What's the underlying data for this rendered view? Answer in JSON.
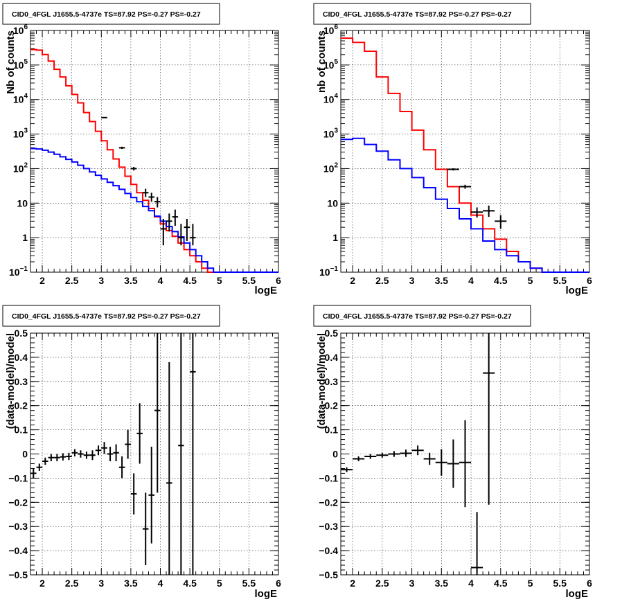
{
  "chart_data": [
    {
      "type": "step",
      "title": "CID0_4FGL J1655.5-4737e TS=87.92 PS=-0.27 PS=-0.27",
      "xlabel": "logE",
      "ylabel": "Nb of counts",
      "log_y": true,
      "xlim": [
        1.8,
        6.0
      ],
      "ylim": [
        0.1,
        1000000
      ],
      "x_ticks": [
        "2",
        "2.5",
        "3",
        "3.5",
        "4",
        "4.5",
        "5",
        "5.5",
        "6"
      ],
      "y_ticks": [
        {
          "base": "10",
          "exp": "−1"
        },
        {
          "base": "1",
          "exp": ""
        },
        {
          "base": "10",
          "exp": ""
        },
        {
          "base": "10",
          "exp": "2"
        },
        {
          "base": "10",
          "exp": "3"
        },
        {
          "base": "10",
          "exp": "4"
        },
        {
          "base": "10",
          "exp": "5"
        },
        {
          "base": "10",
          "exp": "6"
        }
      ],
      "grid": true,
      "bin_edges": [
        1.8,
        1.9,
        2.0,
        2.1,
        2.2,
        2.3,
        2.4,
        2.5,
        2.6,
        2.7,
        2.8,
        2.9,
        3.0,
        3.1,
        3.2,
        3.3,
        3.4,
        3.5,
        3.6,
        3.7,
        3.8,
        3.9,
        4.0,
        4.1,
        4.2,
        4.3,
        4.4,
        4.5,
        4.6,
        4.7,
        4.8,
        4.9,
        5.0,
        5.1,
        5.2,
        5.3,
        5.4,
        5.5,
        5.6,
        5.7,
        5.8,
        5.9,
        6.0
      ],
      "series": [
        {
          "color": "#ff0000",
          "values": [
            280000,
            270000,
            200000,
            130000,
            75000,
            45000,
            25000,
            14000,
            8000,
            4200,
            2300,
            1200,
            640,
            350,
            190,
            110,
            60,
            35,
            20,
            12,
            7,
            4,
            2.5,
            1.6,
            1.1,
            0.7,
            0.45,
            0.3,
            0.2,
            0.13,
            0.1,
            0.1,
            0.1,
            0.1,
            0.1,
            0.1,
            0.1,
            0.1,
            0.1,
            0.1,
            0.1,
            0.1
          ]
        },
        {
          "color": "#0000ff",
          "values": [
            380,
            370,
            340,
            300,
            260,
            220,
            185,
            155,
            125,
            100,
            80,
            64,
            50,
            40,
            32,
            25,
            19,
            14.5,
            11,
            8,
            6,
            4.2,
            3,
            2.1,
            1.5,
            1.05,
            0.7,
            0.45,
            0.3,
            0.2,
            0.13,
            0.1,
            0.1,
            0.1,
            0.1,
            0.1,
            0.1,
            0.1,
            0.1,
            0.1,
            0.1,
            0.1
          ]
        }
      ],
      "points": [
        {
          "x": 3.05,
          "xerr": 0.05,
          "y": 3000,
          "ylo": 2900,
          "yhi": 3100
        },
        {
          "x": 3.35,
          "xerr": 0.05,
          "y": 400,
          "ylo": 370,
          "yhi": 430
        },
        {
          "x": 3.55,
          "xerr": 0.05,
          "y": 100,
          "ylo": 88,
          "yhi": 112
        },
        {
          "x": 3.75,
          "xerr": 0.05,
          "y": 20,
          "ylo": 15,
          "yhi": 26
        },
        {
          "x": 3.85,
          "xerr": 0.05,
          "y": 15,
          "ylo": 11,
          "yhi": 20
        },
        {
          "x": 3.95,
          "xerr": 0.05,
          "y": 11,
          "ylo": 7.5,
          "yhi": 15
        },
        {
          "x": 4.05,
          "xerr": 0.05,
          "y": 1.8,
          "ylo": 0.6,
          "yhi": 3.5
        },
        {
          "x": 4.15,
          "xerr": 0.05,
          "y": 3,
          "ylo": 1.5,
          "yhi": 5
        },
        {
          "x": 4.25,
          "xerr": 0.05,
          "y": 4,
          "ylo": 2.2,
          "yhi": 6.5
        },
        {
          "x": 4.35,
          "xerr": 0.05,
          "y": 1,
          "ylo": 0.6,
          "yhi": 2.5
        },
        {
          "x": 4.45,
          "xerr": 0.05,
          "y": 2,
          "ylo": 0.8,
          "yhi": 3.5
        },
        {
          "x": 4.55,
          "xerr": 0.05,
          "y": 1,
          "ylo": 0.6,
          "yhi": 2.5
        }
      ]
    },
    {
      "type": "step",
      "title": "CID0_4FGL J1655.5-4737e TS=87.92 PS=-0.27 PS=-0.27",
      "xlabel": "logE",
      "ylabel": "nb of counts",
      "log_y": true,
      "xlim": [
        1.8,
        6.0
      ],
      "ylim": [
        0.1,
        1000000
      ],
      "x_ticks": [
        "2",
        "2.5",
        "3",
        "3.5",
        "4",
        "4.5",
        "5",
        "5.5",
        "6"
      ],
      "y_ticks": [
        {
          "base": "10",
          "exp": "−1"
        },
        {
          "base": "1",
          "exp": ""
        },
        {
          "base": "10",
          "exp": ""
        },
        {
          "base": "10",
          "exp": "2"
        },
        {
          "base": "10",
          "exp": "3"
        },
        {
          "base": "10",
          "exp": "4"
        },
        {
          "base": "10",
          "exp": "5"
        },
        {
          "base": "10",
          "exp": "6"
        }
      ],
      "grid": true,
      "bin_edges": [
        1.8,
        2.0,
        2.2,
        2.4,
        2.6,
        2.8,
        3.0,
        3.2,
        3.4,
        3.6,
        3.8,
        4.0,
        4.2,
        4.4,
        4.6,
        4.8,
        5.0,
        5.2,
        5.4,
        5.6,
        5.8,
        6.0
      ],
      "series": [
        {
          "color": "#ff0000",
          "values": [
            600000,
            450000,
            250000,
            45000,
            15000,
            4500,
            1300,
            350,
            95,
            30,
            10,
            4.5,
            1.8,
            0.9,
            0.4,
            0.2,
            0.13,
            0.1,
            0.1,
            0.1,
            0.1
          ]
        },
        {
          "color": "#0000ff",
          "values": [
            700,
            750,
            500,
            320,
            180,
            100,
            55,
            28,
            13,
            7,
            3.5,
            1.8,
            0.8,
            0.45,
            0.3,
            0.2,
            0.13,
            0.1,
            0.1,
            0.1,
            0.1
          ]
        }
      ],
      "points": [
        {
          "x": 3.7,
          "xerr": 0.1,
          "y": 95,
          "ylo": 88,
          "yhi": 102
        },
        {
          "x": 3.9,
          "xerr": 0.1,
          "y": 30,
          "ylo": 26,
          "yhi": 34
        },
        {
          "x": 4.1,
          "xerr": 0.1,
          "y": 5.5,
          "ylo": 3.8,
          "yhi": 7.5
        },
        {
          "x": 4.3,
          "xerr": 0.1,
          "y": 6,
          "ylo": 4,
          "yhi": 8.5
        },
        {
          "x": 4.5,
          "xerr": 0.1,
          "y": 3,
          "ylo": 1.8,
          "yhi": 4.5
        }
      ]
    },
    {
      "type": "scatter",
      "title": "CID0_4FGL J1655.5-4737e TS=87.92 PS=-0.27 PS=-0.27",
      "xlabel": "logE",
      "ylabel": "(data-model)/model",
      "log_y": false,
      "xlim": [
        1.8,
        6.0
      ],
      "ylim": [
        -0.5,
        0.5
      ],
      "x_ticks": [
        "2",
        "2.5",
        "3",
        "3.5",
        "4",
        "4.5",
        "5",
        "5.5",
        "6"
      ],
      "y_ticks": [
        "−0.5",
        "−0.4",
        "−0.3",
        "−0.2",
        "−0.1",
        "0",
        "0.1",
        "0.2",
        "0.3",
        "0.4",
        "0.5"
      ],
      "grid": true,
      "points": [
        {
          "x": 1.85,
          "xerr": 0.05,
          "y": -0.08,
          "ylo": -0.1,
          "yhi": -0.06
        },
        {
          "x": 1.95,
          "xerr": 0.05,
          "y": -0.055,
          "ylo": -0.07,
          "yhi": -0.04
        },
        {
          "x": 2.05,
          "xerr": 0.05,
          "y": -0.03,
          "ylo": -0.045,
          "yhi": -0.015
        },
        {
          "x": 2.15,
          "xerr": 0.05,
          "y": -0.015,
          "ylo": -0.03,
          "yhi": 0.0
        },
        {
          "x": 2.25,
          "xerr": 0.05,
          "y": -0.015,
          "ylo": -0.03,
          "yhi": 0.0
        },
        {
          "x": 2.35,
          "xerr": 0.05,
          "y": -0.012,
          "ylo": -0.027,
          "yhi": 0.003
        },
        {
          "x": 2.45,
          "xerr": 0.05,
          "y": -0.01,
          "ylo": -0.025,
          "yhi": 0.005
        },
        {
          "x": 2.55,
          "xerr": 0.05,
          "y": 0.005,
          "ylo": -0.01,
          "yhi": 0.02
        },
        {
          "x": 2.65,
          "xerr": 0.05,
          "y": 0.0,
          "ylo": -0.015,
          "yhi": 0.015
        },
        {
          "x": 2.75,
          "xerr": 0.05,
          "y": -0.005,
          "ylo": -0.02,
          "yhi": 0.01
        },
        {
          "x": 2.85,
          "xerr": 0.05,
          "y": -0.005,
          "ylo": -0.025,
          "yhi": 0.015
        },
        {
          "x": 2.95,
          "xerr": 0.05,
          "y": 0.015,
          "ylo": -0.005,
          "yhi": 0.035
        },
        {
          "x": 3.05,
          "xerr": 0.05,
          "y": 0.025,
          "ylo": 0.0,
          "yhi": 0.05
        },
        {
          "x": 3.15,
          "xerr": 0.05,
          "y": 0.0,
          "ylo": -0.03,
          "yhi": 0.03
        },
        {
          "x": 3.25,
          "xerr": 0.05,
          "y": 0.005,
          "ylo": -0.03,
          "yhi": 0.04
        },
        {
          "x": 3.35,
          "xerr": 0.05,
          "y": -0.055,
          "ylo": -0.1,
          "yhi": -0.01
        },
        {
          "x": 3.45,
          "xerr": 0.05,
          "y": 0.04,
          "ylo": -0.02,
          "yhi": 0.1
        },
        {
          "x": 3.55,
          "xerr": 0.05,
          "y": -0.165,
          "ylo": -0.25,
          "yhi": -0.08
        },
        {
          "x": 3.65,
          "xerr": 0.05,
          "y": 0.085,
          "ylo": -0.04,
          "yhi": 0.21
        },
        {
          "x": 3.75,
          "xerr": 0.05,
          "y": -0.31,
          "ylo": -0.46,
          "yhi": -0.16
        },
        {
          "x": 3.85,
          "xerr": 0.05,
          "y": -0.17,
          "ylo": -0.37,
          "yhi": 0.03
        },
        {
          "x": 3.95,
          "xerr": 0.05,
          "y": 0.18,
          "ylo": -0.16,
          "yhi": 0.5
        },
        {
          "x": 4.15,
          "xerr": 0.05,
          "y": -0.12,
          "ylo": -0.5,
          "yhi": 0.38
        },
        {
          "x": 4.35,
          "xerr": 0.05,
          "y": 0.035,
          "ylo": -0.5,
          "yhi": 0.5
        },
        {
          "x": 4.55,
          "xerr": 0.05,
          "y": 0.34,
          "ylo": -0.5,
          "yhi": 0.5
        }
      ]
    },
    {
      "type": "scatter",
      "title": "CID0_4FGL J1655.5-4737e TS=87.92 PS=-0.27 PS=-0.27",
      "xlabel": "logE",
      "ylabel": "(data-model)/model",
      "log_y": false,
      "xlim": [
        1.8,
        6.0
      ],
      "ylim": [
        -0.5,
        0.5
      ],
      "x_ticks": [
        "2",
        "2.5",
        "3",
        "3.5",
        "4",
        "4.5",
        "5",
        "5.5",
        "6"
      ],
      "y_ticks": [
        "−0.5",
        "−0.4",
        "−0.3",
        "−0.2",
        "−0.1",
        "0",
        "0.1",
        "0.2",
        "0.3",
        "0.4",
        "0.5"
      ],
      "grid": true,
      "points": [
        {
          "x": 1.9,
          "xerr": 0.1,
          "y": -0.065,
          "ylo": -0.075,
          "yhi": -0.055
        },
        {
          "x": 2.1,
          "xerr": 0.1,
          "y": -0.02,
          "ylo": -0.03,
          "yhi": -0.01
        },
        {
          "x": 2.3,
          "xerr": 0.1,
          "y": -0.01,
          "ylo": -0.02,
          "yhi": 0.0
        },
        {
          "x": 2.5,
          "xerr": 0.1,
          "y": -0.005,
          "ylo": -0.015,
          "yhi": 0.005
        },
        {
          "x": 2.7,
          "xerr": 0.1,
          "y": 0.0,
          "ylo": -0.012,
          "yhi": 0.012
        },
        {
          "x": 2.9,
          "xerr": 0.1,
          "y": 0.003,
          "ylo": -0.012,
          "yhi": 0.018
        },
        {
          "x": 3.1,
          "xerr": 0.1,
          "y": 0.015,
          "ylo": -0.005,
          "yhi": 0.035
        },
        {
          "x": 3.3,
          "xerr": 0.1,
          "y": -0.02,
          "ylo": -0.045,
          "yhi": 0.005
        },
        {
          "x": 3.5,
          "xerr": 0.1,
          "y": -0.035,
          "ylo": -0.09,
          "yhi": 0.02
        },
        {
          "x": 3.7,
          "xerr": 0.1,
          "y": -0.04,
          "ylo": -0.14,
          "yhi": 0.06
        },
        {
          "x": 3.9,
          "xerr": 0.1,
          "y": -0.035,
          "ylo": -0.22,
          "yhi": 0.14
        },
        {
          "x": 4.1,
          "xerr": 0.1,
          "y": -0.47,
          "ylo": -0.5,
          "yhi": -0.24
        },
        {
          "x": 4.3,
          "xerr": 0.1,
          "y": 0.335,
          "ylo": -0.21,
          "yhi": 0.5
        }
      ]
    }
  ]
}
